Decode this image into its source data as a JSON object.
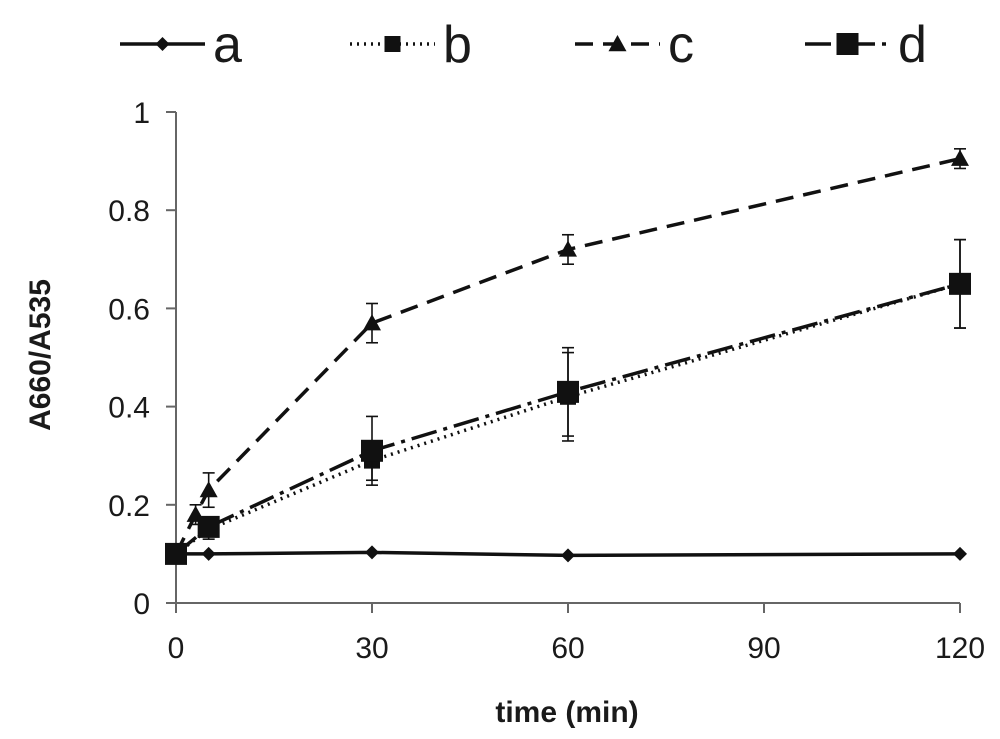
{
  "chart_data": {
    "type": "line",
    "title": "",
    "xlabel": "time (min)",
    "ylabel": "A660/A535",
    "xlim": [
      0,
      120
    ],
    "ylim": [
      0,
      1
    ],
    "xticks": [
      0,
      30,
      60,
      90,
      120
    ],
    "yticks": [
      0,
      0.2,
      0.4,
      0.6,
      0.8,
      1
    ],
    "ytick_labels": [
      "0",
      "0.2",
      "0.4",
      "0.6",
      "0.8",
      "1"
    ],
    "grid": false,
    "legend_position": "top",
    "series": [
      {
        "name": "a",
        "marker": "diamond",
        "line_style": "solid",
        "x": [
          0,
          5,
          30,
          60,
          120
        ],
        "y": [
          0.1,
          0.1,
          0.103,
          0.097,
          0.1
        ],
        "err": [
          0,
          0,
          0,
          0,
          0
        ]
      },
      {
        "name": "b",
        "marker": "square-small",
        "line_style": "dotted",
        "x": [
          0,
          5,
          30,
          60,
          120
        ],
        "y": [
          0.1,
          0.15,
          0.29,
          0.42,
          0.65
        ],
        "err": [
          0,
          0.02,
          0.04,
          0.09,
          0.09
        ]
      },
      {
        "name": "c",
        "marker": "triangle",
        "line_style": "dashed",
        "x": [
          0,
          3,
          5,
          30,
          60,
          120
        ],
        "y": [
          0.1,
          0.18,
          0.23,
          0.57,
          0.72,
          0.905
        ],
        "err": [
          0,
          0.02,
          0.035,
          0.04,
          0.03,
          0.02
        ]
      },
      {
        "name": "d",
        "marker": "square-large",
        "line_style": "dash-dot",
        "x": [
          0,
          5,
          30,
          60,
          120
        ],
        "y": [
          0.1,
          0.155,
          0.31,
          0.43,
          0.65
        ],
        "err": [
          0,
          0.02,
          0.07,
          0.09,
          0.09
        ]
      }
    ],
    "colors": {
      "line": "#111111",
      "axis": "#666666",
      "text": "#1a1a1a"
    }
  }
}
